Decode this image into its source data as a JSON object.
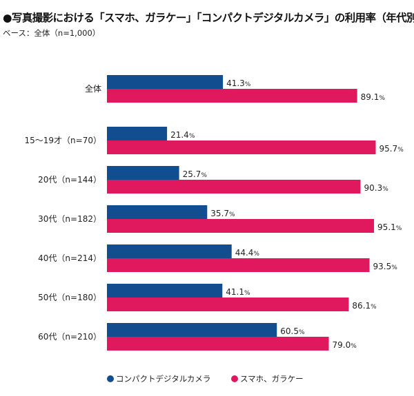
{
  "title": "●写真撮影における「スマホ、ガラケー」「コンパクトデジタルカメラ」の利用率（年代別）",
  "subtitle": "ベース：全体（n=1,000）",
  "chart_data": {
    "type": "bar",
    "orientation": "horizontal",
    "categories": [
      "全体",
      "15～19才（n=70）",
      "20代（n=144）",
      "30代（n=182）",
      "40代（n=214）",
      "50代（n=180）",
      "60代（n=210）"
    ],
    "series": [
      {
        "name": "コンパクトデジタルカメラ",
        "color": "#124d8f",
        "values": [
          41.3,
          21.4,
          25.7,
          35.7,
          44.4,
          41.1,
          60.5
        ]
      },
      {
        "name": "スマホ、ガラケー",
        "color": "#e0195e",
        "values": [
          89.1,
          95.7,
          90.3,
          95.1,
          93.5,
          86.1,
          79.0
        ]
      }
    ],
    "unit": "%",
    "xlim": [
      0,
      100
    ],
    "grid": false,
    "legend": "bottom"
  }
}
